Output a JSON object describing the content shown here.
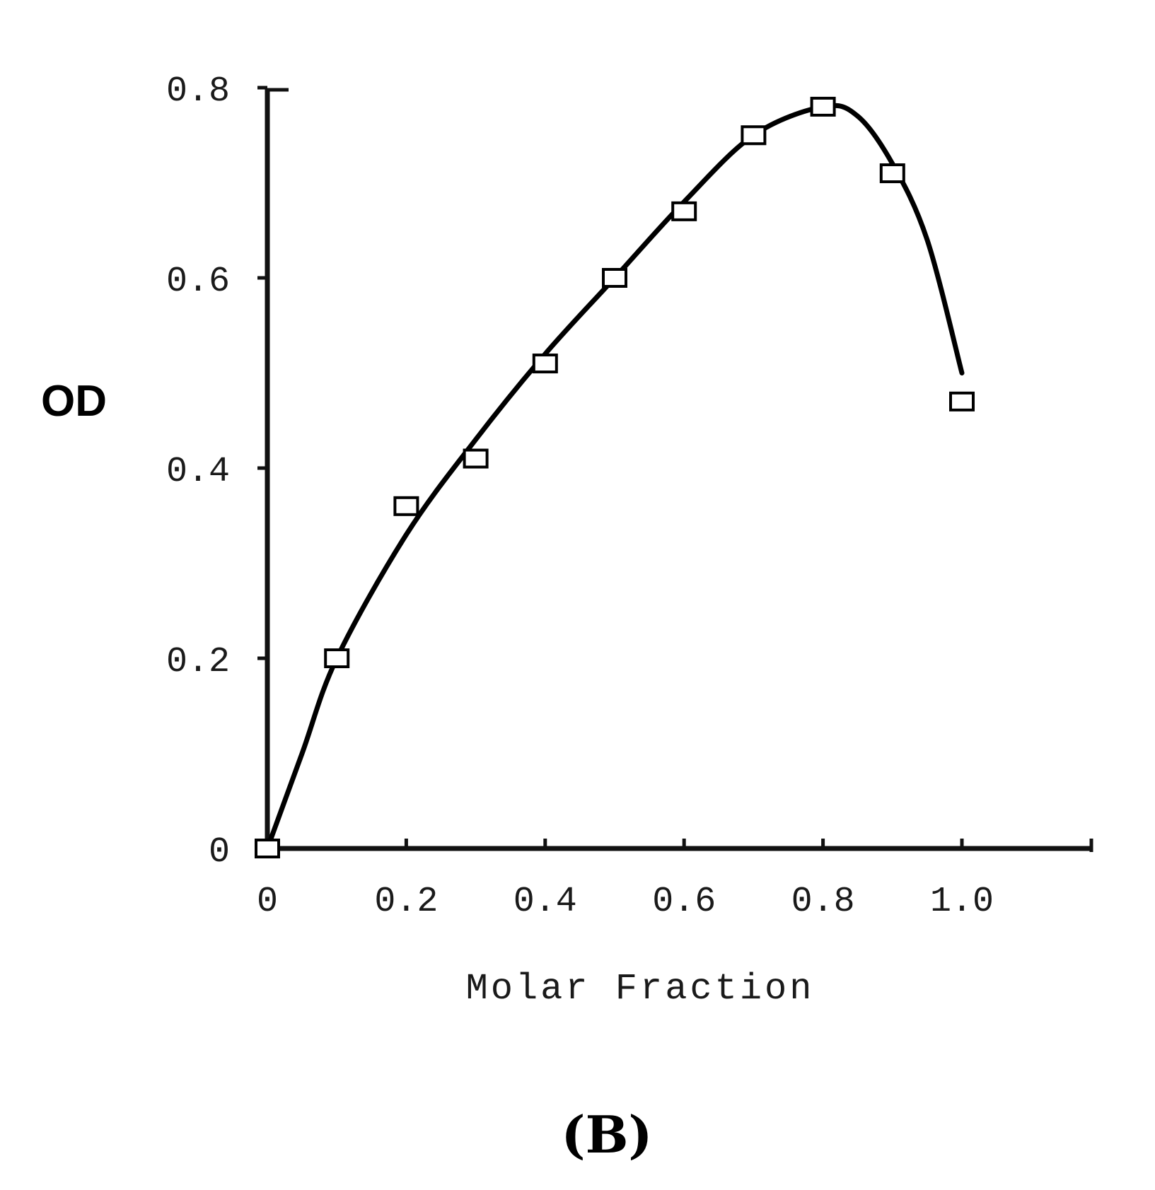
{
  "chart_data": {
    "type": "scatter",
    "title": "",
    "xlabel": "Molar Fraction",
    "ylabel": "OD",
    "panel_label": "(B)",
    "xlim": [
      0,
      1.2
    ],
    "ylim": [
      0,
      0.8
    ],
    "x_ticks": [
      0,
      0.2,
      0.4,
      0.6,
      0.8,
      1.0
    ],
    "x_tick_labels": [
      "0",
      "0.2",
      "0.4",
      "0.6",
      "0.8",
      "1.0"
    ],
    "y_ticks": [
      0,
      0.2,
      0.4,
      0.6,
      0.8
    ],
    "y_tick_labels": [
      "0",
      "0.2",
      "0.4",
      "0.6",
      "0.8"
    ],
    "grid": false,
    "series": [
      {
        "x": [
          0.0,
          0.1,
          0.2,
          0.3,
          0.4,
          0.5,
          0.6,
          0.7,
          0.8,
          0.9,
          1.0
        ],
        "y": [
          0.0,
          0.2,
          0.36,
          0.41,
          0.51,
          0.6,
          0.67,
          0.75,
          0.78,
          0.71,
          0.47
        ],
        "marker": "open-square"
      }
    ],
    "fit_curve": {
      "x": [
        0.0,
        0.05,
        0.1,
        0.2,
        0.3,
        0.4,
        0.5,
        0.6,
        0.7,
        0.8,
        0.85,
        0.9,
        0.95,
        1.0
      ],
      "y": [
        0.0,
        0.1,
        0.2,
        0.33,
        0.43,
        0.52,
        0.6,
        0.68,
        0.75,
        0.78,
        0.77,
        0.72,
        0.64,
        0.5
      ]
    },
    "colors": {
      "line": "#000000",
      "marker_fill": "#ffffff",
      "axis": "#111111"
    }
  }
}
